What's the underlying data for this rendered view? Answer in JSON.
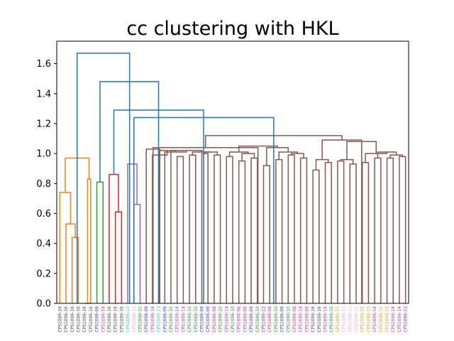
{
  "chart_data": {
    "type": "dendrogram",
    "title": "cc clustering with HKL",
    "xlabel": "",
    "ylabel": "",
    "ylim": [
      0,
      1.75
    ],
    "yticks": [
      "0.0",
      "0.2",
      "0.4",
      "0.6",
      "0.8",
      "1.0",
      "1.2",
      "1.4",
      "1.6"
    ],
    "leaf_order": [
      "CPS1006-16",
      "CPS1006-16",
      "CPS1006-16",
      "CPS1006-16",
      "CPS1006-16",
      "CPS1006-16",
      "CPS1006-09",
      "CPS1006-14",
      "CPS1006-16",
      "CPS1006-16",
      "CPS1006-16",
      "CPS1006-13",
      "CPS1006-11",
      "CPS1006-10",
      "CPS1006-09",
      "CPS1006-14",
      "CPS1006-13",
      "CPS1006-09",
      "CPS1006-10",
      "CPS1006-14",
      "CPS1006-14",
      "CPS1006-10",
      "CPS1006-10",
      "CPS1006-09",
      "CPS1006-09",
      "CPS1006-08",
      "CPS1006-10",
      "CPS1006-14",
      "CPS1006-10",
      "CPS1006-08",
      "CPS1006-08",
      "CPS1006-09",
      "CPS1006-10",
      "CPS1006-12",
      "CPS1006-08",
      "CPS1006-10",
      "CPS1006-09",
      "CPS1006-10",
      "CPS1006-08",
      "CPS1006-14",
      "CPS1006-08",
      "CPS1006-16",
      "CPS1006-16",
      "CPS1006-14",
      "CPS1006-10",
      "CPS1006-15",
      "CPS1006-11",
      "CPS1006-11",
      "CPS1006-11",
      "CPS1006-15",
      "CPS1006-15",
      "CPS1006-14",
      "CPS1006-15",
      "CPS1006-15",
      "CPS1006-14",
      "CPS1006-14",
      "CPS1006-12"
    ],
    "label_colors": {
      "CPS1006-08": "#e0208c",
      "CPS1006-09": "#3030d8",
      "CPS1006-10": "#2a8a2a",
      "CPS1006-11": "#f0a8c8",
      "CPS1006-12": "#8a2aa0",
      "CPS1006-13": "#2ac8d8",
      "CPS1006-14": "#c030c0",
      "CPS1006-15": "#d8a020",
      "CPS1006-16": "#404040"
    },
    "cluster_colors": [
      "#ff7f0e",
      "#2ca02c",
      "#d62728",
      "#9467bd",
      "#8c564b"
    ],
    "above_threshold_color": "#1f77b4",
    "links": [
      {
        "a": 2,
        "b": 3,
        "h": 0.44,
        "c": 0
      },
      {
        "a": 1,
        "b": 2.5,
        "h": 0.53,
        "c": 0
      },
      {
        "a": 0,
        "b": 1.75,
        "h": 0.74,
        "c": 0
      },
      {
        "a": 4,
        "b": 5,
        "h": 0.0,
        "c": 0
      },
      {
        "a": 4.5,
        "b": 5,
        "h": 0.83,
        "c": 0
      },
      {
        "a": 0.875,
        "b": 4.75,
        "h": 0.97,
        "c": 0
      },
      {
        "a": 6,
        "b": 7,
        "h": 0.81,
        "c": 1
      },
      {
        "a": 9,
        "b": 10,
        "h": 0.61,
        "c": 2
      },
      {
        "a": 8,
        "b": 9.5,
        "h": 0.86,
        "c": 2
      },
      {
        "a": 12,
        "b": 13,
        "h": 0.66,
        "c": 3
      },
      {
        "a": 11,
        "b": 12.5,
        "h": 0.93,
        "c": 3
      },
      {
        "a": 19,
        "b": 20,
        "h": 0.98,
        "c": 4
      },
      {
        "a": 21,
        "b": 22,
        "h": 0.99,
        "c": 4
      },
      {
        "a": 23,
        "b": 24,
        "h": 1.0,
        "c": 4
      },
      {
        "a": 25,
        "b": 26,
        "h": 0.99,
        "c": 4
      },
      {
        "a": 23.5,
        "b": 25.5,
        "h": 1.01,
        "c": 4
      },
      {
        "a": 21.5,
        "b": 24.5,
        "h": 1.01,
        "c": 4
      },
      {
        "a": 18,
        "b": 23,
        "h": 1.02,
        "c": 4
      },
      {
        "a": 17,
        "b": 20.5,
        "h": 1.01,
        "c": 4
      },
      {
        "a": 16,
        "b": 18.75,
        "h": 1.02,
        "c": 4
      },
      {
        "a": 15,
        "b": 17.375,
        "h": 0.99,
        "c": 4
      },
      {
        "a": 14,
        "b": 16.19,
        "h": 1.03,
        "c": 4
      },
      {
        "a": 27,
        "b": 28,
        "h": 0.98,
        "c": 4
      },
      {
        "a": 29,
        "b": 30,
        "h": 0.95,
        "c": 4
      },
      {
        "a": 31,
        "b": 32,
        "h": 0.97,
        "c": 4
      },
      {
        "a": 29.5,
        "b": 31.5,
        "h": 1.0,
        "c": 4
      },
      {
        "a": 27.5,
        "b": 30.5,
        "h": 1.01,
        "c": 4
      },
      {
        "a": 33,
        "b": 34,
        "h": 0.92,
        "c": 4
      },
      {
        "a": 35,
        "b": 36,
        "h": 0.96,
        "c": 4
      },
      {
        "a": 37,
        "b": 38,
        "h": 0.99,
        "c": 4
      },
      {
        "a": 39,
        "b": 40,
        "h": 0.97,
        "c": 4
      },
      {
        "a": 37.5,
        "b": 39.5,
        "h": 1.0,
        "c": 4
      },
      {
        "a": 35.5,
        "b": 38.5,
        "h": 1.01,
        "c": 4
      },
      {
        "a": 33.5,
        "b": 37,
        "h": 1.04,
        "c": 4
      },
      {
        "a": 29,
        "b": 35.25,
        "h": 1.05,
        "c": 4
      },
      {
        "a": 15.1,
        "b": 32.1,
        "h": 1.04,
        "c": 4
      },
      {
        "a": 41,
        "b": 42,
        "h": 0.89,
        "c": 4
      },
      {
        "a": 43,
        "b": 44,
        "h": 0.94,
        "c": 4
      },
      {
        "a": 41.5,
        "b": 43.5,
        "h": 0.96,
        "c": 4
      },
      {
        "a": 45,
        "b": 46,
        "h": 0.95,
        "c": 4
      },
      {
        "a": 47,
        "b": 48,
        "h": 0.93,
        "c": 4
      },
      {
        "a": 45.5,
        "b": 47.5,
        "h": 0.96,
        "c": 4
      },
      {
        "a": 49,
        "b": 50,
        "h": 0.94,
        "c": 4
      },
      {
        "a": 51,
        "b": 52,
        "h": 0.97,
        "c": 4
      },
      {
        "a": 53,
        "b": 54,
        "h": 0.97,
        "c": 4
      },
      {
        "a": 55,
        "b": 56,
        "h": 0.98,
        "c": 4
      },
      {
        "a": 53.5,
        "b": 55.5,
        "h": 0.99,
        "c": 4
      },
      {
        "a": 51.5,
        "b": 54.5,
        "h": 1.01,
        "c": 4
      },
      {
        "a": 49.5,
        "b": 53,
        "h": 1.0,
        "c": 4
      },
      {
        "a": 46.5,
        "b": 51.25,
        "h": 1.08,
        "c": 4
      },
      {
        "a": 42.5,
        "b": 48.9,
        "h": 1.09,
        "c": 4
      },
      {
        "a": 23.6,
        "b": 45.7,
        "h": 1.12,
        "c": 4
      },
      {
        "a": 12,
        "b": 34.65,
        "h": 1.24,
        "c": 5
      },
      {
        "a": 8.75,
        "b": 23.3,
        "h": 1.29,
        "c": 5
      },
      {
        "a": 6.5,
        "b": 16.0,
        "h": 1.48,
        "c": 5
      },
      {
        "a": 2.8,
        "b": 11.3,
        "h": 1.67,
        "c": 5
      }
    ]
  }
}
